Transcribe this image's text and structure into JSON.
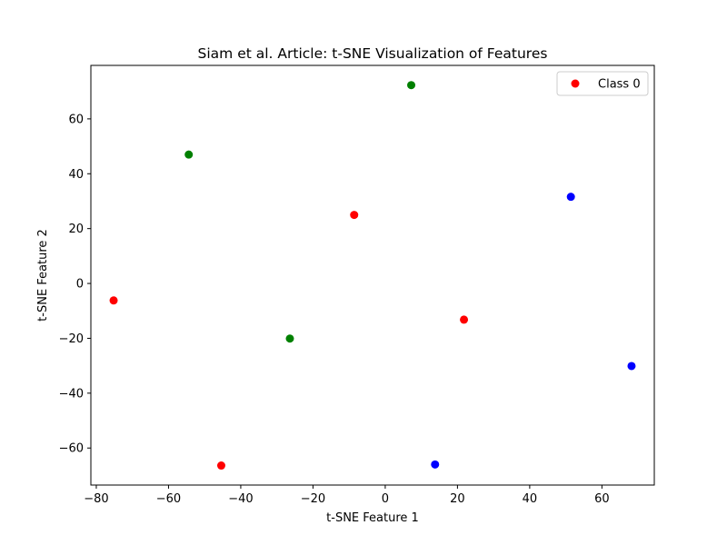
{
  "chart_data": {
    "type": "scatter",
    "title": "Siam et al. Article: t-SNE Visualization of Features",
    "xlabel": "t-SNE Feature 1",
    "ylabel": "t-SNE Feature 2",
    "xlim": [
      -81.5,
      74.5
    ],
    "ylim": [
      -73.5,
      79.5
    ],
    "xticks": [
      -80,
      -60,
      -40,
      -20,
      0,
      20,
      40,
      60
    ],
    "xtick_labels": [
      "−80",
      "−60",
      "−40",
      "−20",
      "0",
      "20",
      "40",
      "60"
    ],
    "yticks": [
      -60,
      -40,
      -20,
      0,
      20,
      40,
      60
    ],
    "ytick_labels": [
      "−60",
      "−40",
      "−20",
      "0",
      "20",
      "40",
      "60"
    ],
    "grid": false,
    "legend": {
      "position": "top-right",
      "entries": [
        {
          "label": "Class 0",
          "color": "#ff0000"
        }
      ]
    },
    "series": [
      {
        "name": "Class 0",
        "color": "#ff0000",
        "points": [
          {
            "x": -75.2,
            "y": -6.2
          },
          {
            "x": -45.4,
            "y": -66.4
          },
          {
            "x": -8.6,
            "y": 25.0
          },
          {
            "x": 21.8,
            "y": -13.2
          }
        ]
      },
      {
        "color": "#008000",
        "points": [
          {
            "x": -54.4,
            "y": 47.0
          },
          {
            "x": -26.4,
            "y": -20.1
          },
          {
            "x": 7.2,
            "y": 72.3
          }
        ]
      },
      {
        "color": "#0000ff",
        "points": [
          {
            "x": 13.8,
            "y": -66.0
          },
          {
            "x": 51.4,
            "y": 31.6
          },
          {
            "x": 68.2,
            "y": -30.1
          }
        ]
      }
    ]
  }
}
